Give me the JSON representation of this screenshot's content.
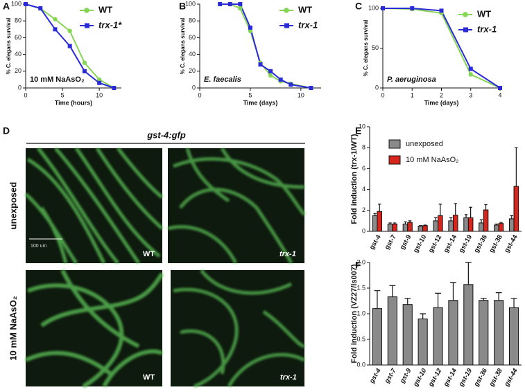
{
  "panel_labels": [
    "A",
    "B",
    "C",
    "D",
    "E",
    "F"
  ],
  "panel_d": {
    "title": "gst-4:gfp",
    "rows": [
      "unexposed",
      "10 mM NaAsO₂"
    ],
    "image_labels": [
      "WT",
      "trx-1",
      "WT",
      "trx-1"
    ],
    "scale_bar": "100 um"
  },
  "chart_data": [
    {
      "type": "line",
      "xlabel": "Time (hours)",
      "ylabel": "% C. elegans survival",
      "annotation": "10 mM NaAsO₂",
      "x": [
        0,
        2,
        4,
        6,
        8,
        10,
        12
      ],
      "series": [
        {
          "name": "WT",
          "color": "#86d555",
          "marker": "circle",
          "values": [
            100,
            95,
            82,
            68,
            30,
            10,
            0
          ]
        },
        {
          "name": "trx-1*",
          "color": "#2a2ad8",
          "marker": "square",
          "values": [
            100,
            95,
            70,
            50,
            20,
            6,
            0
          ]
        }
      ],
      "xlim": [
        0,
        13
      ],
      "xticks": [
        0,
        5,
        10
      ],
      "ylim": [
        0,
        100
      ],
      "yticks": [
        0,
        20,
        40,
        60,
        80,
        100
      ],
      "legend": "upper right"
    },
    {
      "type": "line",
      "xlabel": "Time (days)",
      "ylabel": "% C. elegans survival",
      "annotation": "E. faecalis",
      "x": [
        2,
        3,
        4,
        5,
        6,
        7,
        8,
        9,
        11
      ],
      "series": [
        {
          "name": "WT",
          "color": "#86d555",
          "marker": "circle",
          "values": [
            100,
            100,
            95,
            68,
            30,
            15,
            8,
            5,
            0
          ]
        },
        {
          "name": "trx-1",
          "color": "#2a2ad8",
          "marker": "square",
          "values": [
            100,
            100,
            100,
            72,
            28,
            20,
            10,
            4,
            0
          ]
        }
      ],
      "xlim": [
        0,
        12
      ],
      "xticks": [
        0,
        5,
        10
      ],
      "ylim": [
        0,
        100
      ],
      "yticks": [
        0,
        20,
        40,
        60,
        80,
        100
      ],
      "legend": "upper right"
    },
    {
      "type": "line",
      "xlabel": "Time (days)",
      "ylabel": "% C. elegans survival",
      "annotation": "P. aeruginosa",
      "x": [
        0,
        1,
        2,
        3,
        4
      ],
      "series": [
        {
          "name": "WT",
          "color": "#86d555",
          "marker": "circle",
          "values": [
            100,
            99,
            94,
            17,
            0
          ]
        },
        {
          "name": "trx-1",
          "color": "#2a2ad8",
          "marker": "square",
          "values": [
            100,
            100,
            97,
            24,
            0
          ]
        }
      ],
      "xlim": [
        0,
        4
      ],
      "xticks": [
        0,
        1,
        2,
        3,
        4
      ],
      "ylim": [
        0,
        100
      ],
      "yticks": [
        0,
        50,
        100
      ],
      "legend": "upper right"
    },
    {
      "type": "bar",
      "ylabel": "Fold induction (trx-1/WT)",
      "categories": [
        "gst-4",
        "gst-7",
        "gst-9",
        "gst-10",
        "gst-12",
        "gst-14",
        "gst-19",
        "gst-36",
        "gst-38",
        "gst-44"
      ],
      "series": [
        {
          "name": "unexposed",
          "color": "#8a8a8a",
          "values": [
            1.5,
            0.7,
            0.7,
            0.5,
            1.0,
            1.0,
            1.3,
            0.8,
            0.6,
            1.2
          ],
          "errors": [
            0.2,
            0.1,
            0.2,
            0.05,
            0.3,
            0.3,
            0.3,
            0.3,
            0.1,
            0.3
          ]
        },
        {
          "name": "10 mM NaAsO₂",
          "color": "#d6261e",
          "values": [
            1.9,
            0.7,
            0.85,
            0.55,
            1.5,
            1.55,
            1.3,
            2.05,
            0.75,
            4.3
          ],
          "errors": [
            0.7,
            0.1,
            0.15,
            0.05,
            1.1,
            1.1,
            1.0,
            0.5,
            0.1,
            3.7
          ]
        }
      ],
      "ylim": [
        0,
        10
      ],
      "yticks": [
        0,
        2,
        4,
        6,
        8,
        10
      ],
      "legend": "upper left"
    },
    {
      "type": "bar",
      "ylabel": "Fold induction (VZ27/ls007)",
      "categories": [
        "gst-4",
        "gst-7",
        "gst-9",
        "gst-10",
        "gst-12",
        "gst-14",
        "gst-19",
        "gst-36",
        "gst-38",
        "gst-44"
      ],
      "series": [
        {
          "color": "#8a8a8a",
          "values": [
            1.1,
            1.33,
            1.18,
            0.9,
            1.12,
            1.26,
            1.57,
            1.26,
            1.26,
            1.12
          ],
          "errors": [
            0.35,
            0.22,
            0.12,
            0.1,
            0.28,
            0.35,
            0.43,
            0.04,
            0.15,
            0.18
          ]
        }
      ],
      "ylim": [
        0,
        2
      ],
      "yticks": [
        {
          "value": 0,
          "label": "0.0"
        },
        0.5,
        {
          "value": 1,
          "label": "1.0"
        },
        1.5,
        {
          "value": 2,
          "label": "2.0"
        }
      ]
    }
  ]
}
